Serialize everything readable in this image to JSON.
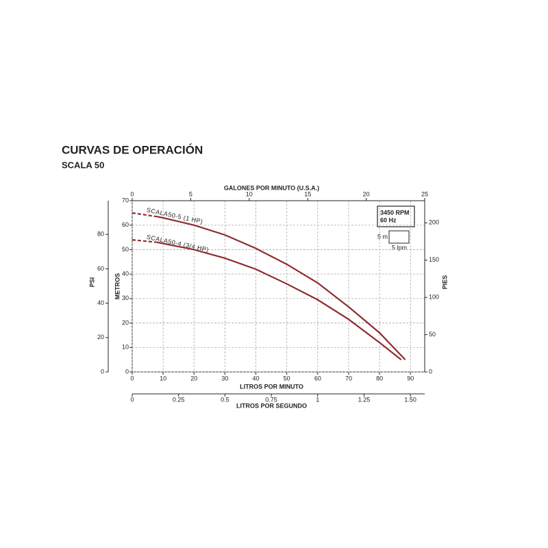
{
  "title": "CURVAS DE OPERACIÓN",
  "subtitle": "SCALA 50",
  "chart_data": {
    "type": "line",
    "x_label": "LITROS POR MINUTO",
    "xlim": [
      0,
      94.6
    ],
    "xticks": [
      0,
      10,
      20,
      30,
      40,
      50,
      60,
      70,
      80,
      90
    ],
    "y_label": "METROS",
    "ylim": [
      0,
      70
    ],
    "yticks": [
      0,
      10,
      20,
      30,
      40,
      50,
      60,
      70
    ],
    "grid": true,
    "psi_axis": {
      "label": "PSI",
      "lim": [
        0,
        99.6
      ],
      "ticks": [
        0,
        20,
        40,
        60,
        80
      ]
    },
    "feet_axis": {
      "label": "PIES",
      "lim": [
        0,
        229.7
      ],
      "ticks": [
        0,
        50,
        100,
        150,
        200
      ]
    },
    "gpm_axis": {
      "label": "GALONES POR MINUTO (U.S.A.)",
      "lim": [
        0,
        25
      ],
      "ticks": [
        0,
        5,
        10,
        15,
        20,
        25
      ]
    },
    "lps_axis": {
      "label": "LITROS POR SEGUNDO",
      "lim": [
        0,
        1.577
      ],
      "ticks": [
        0,
        0.25,
        0.5,
        0.75,
        1,
        1.25,
        {
          "value": 1.5,
          "label": "1.50"
        }
      ]
    },
    "annotations": [
      "3450 RPM",
      "60 Hz",
      "5 m",
      "5 lpm"
    ],
    "series": [
      {
        "name": "SCALA50-5 (1 HP)",
        "color": "#8e2b2e",
        "dashed_segments": 1,
        "x": [
          0,
          8,
          10,
          20,
          30,
          40,
          50,
          60,
          70,
          80,
          88.3
        ],
        "values": [
          65,
          63.5,
          63,
          60,
          56,
          50.5,
          44,
          36.4,
          26.6,
          16,
          5
        ]
      },
      {
        "name": "SCALA50-4 (3/4 HP)",
        "color": "#8e2b2e",
        "dashed_segments": 1,
        "x": [
          0,
          8,
          10,
          20,
          30,
          40,
          50,
          60,
          70,
          80,
          87
        ],
        "values": [
          54,
          53,
          52.5,
          50,
          46.5,
          42,
          36,
          29.5,
          21.5,
          12,
          5
        ]
      }
    ]
  }
}
